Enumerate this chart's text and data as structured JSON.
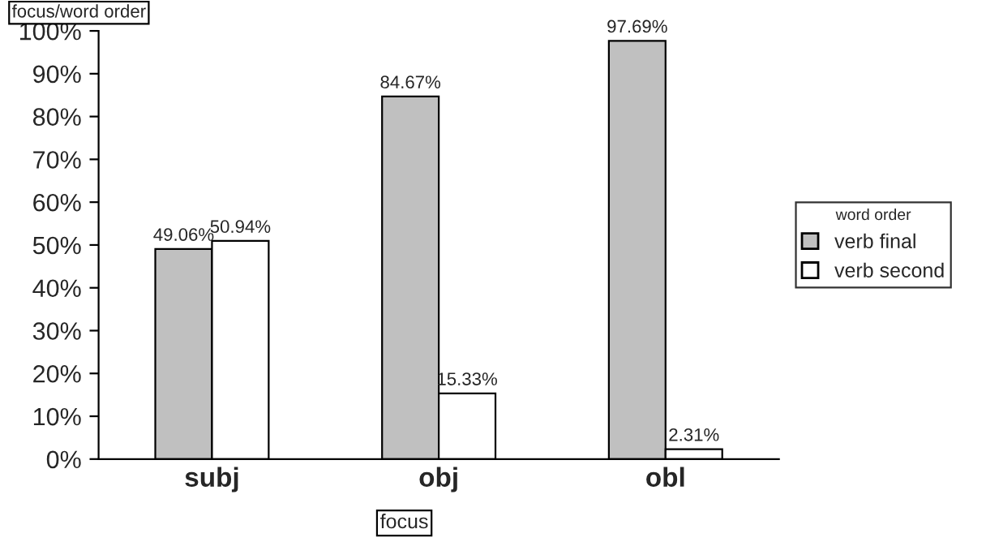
{
  "chart_data": {
    "type": "bar",
    "title": "focus/word order",
    "xlabel": "focus",
    "legend_title": "word order",
    "categories": [
      "subj",
      "obj",
      "obl"
    ],
    "series": [
      {
        "name": "verb final",
        "color": "#c0c0c0",
        "values": [
          49.06,
          84.67,
          97.69
        ],
        "value_labels": [
          "49.06%",
          "84.67%",
          "97.69%"
        ]
      },
      {
        "name": "verb second",
        "color": "#ffffff",
        "values": [
          50.94,
          15.33,
          2.31
        ],
        "value_labels": [
          "50.94%",
          "15.33%",
          "2.31%"
        ]
      }
    ],
    "ylim": [
      0,
      100
    ],
    "yticks": [
      {
        "value": 0,
        "label": "0%"
      },
      {
        "value": 10,
        "label": "10%"
      },
      {
        "value": 20,
        "label": "20%"
      },
      {
        "value": 30,
        "label": "30%"
      },
      {
        "value": 40,
        "label": "40%"
      },
      {
        "value": 50,
        "label": "50%"
      },
      {
        "value": 60,
        "label": "60%"
      },
      {
        "value": 70,
        "label": "70%"
      },
      {
        "value": 80,
        "label": "80%"
      },
      {
        "value": 90,
        "label": "90%"
      },
      {
        "value": 100,
        "label": "100%"
      }
    ],
    "grid": false,
    "legend": "right"
  }
}
